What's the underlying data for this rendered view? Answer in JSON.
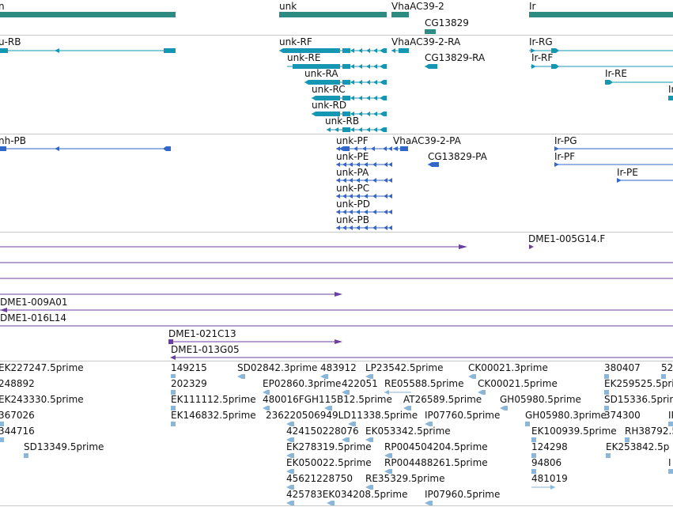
{
  "colors": {
    "gene": "#2e8b82",
    "transcript": "#1597b3",
    "protein": "#3266c8",
    "clone": "#6a3fa0",
    "est": "#8ab6d9",
    "divider": "#c8c8c8"
  },
  "genes": [
    {
      "label": "n"
    },
    {
      "label": "unk"
    },
    {
      "label": "VhaAC39-2"
    },
    {
      "label": "CG13829"
    },
    {
      "label": "Ir"
    }
  ],
  "transcripts": [
    {
      "label": "u-RB"
    },
    {
      "label": "unk-RF"
    },
    {
      "label": "VhaAC39-2-RA"
    },
    {
      "label": "Ir-RG"
    },
    {
      "label": "unk-RE"
    },
    {
      "label": "CG13829-RA"
    },
    {
      "label": "Ir-RF"
    },
    {
      "label": "unk-RA"
    },
    {
      "label": "Ir-RE"
    },
    {
      "label": "Ir"
    },
    {
      "label": "unk-RC"
    },
    {
      "label": "unk-RD"
    },
    {
      "label": "unk-RB"
    }
  ],
  "proteins": [
    {
      "label": "nh-PB"
    },
    {
      "label": "unk-PF"
    },
    {
      "label": "VhaAC39-2-PA"
    },
    {
      "label": "Ir-PG"
    },
    {
      "label": "unk-PE"
    },
    {
      "label": "CG13829-PA"
    },
    {
      "label": "Ir-PF"
    },
    {
      "label": "unk-PA"
    },
    {
      "label": "Ir-PE"
    },
    {
      "label": "unk-PC"
    },
    {
      "label": "unk-PD"
    },
    {
      "label": "unk-PB"
    }
  ],
  "clones": [
    {
      "label": "DME1-005G14.F"
    },
    {
      "label": "DME1-009A01"
    },
    {
      "label": "DME1-016L14"
    },
    {
      "label": "DME1-021C13"
    },
    {
      "label": "DME1-013G05"
    }
  ],
  "ests": [
    {
      "label": "EK227247.5prime"
    },
    {
      "label": "149215"
    },
    {
      "label": "SD02842.3prime"
    },
    {
      "label": "483912"
    },
    {
      "label": "LP23542.5prime"
    },
    {
      "label": "CK00021.3prime"
    },
    {
      "label": "380407"
    },
    {
      "label": "52"
    },
    {
      "label": "248892"
    },
    {
      "label": "202329"
    },
    {
      "label": "EP02860.3prime"
    },
    {
      "label": "422051"
    },
    {
      "label": "RE05588.5prime"
    },
    {
      "label": "CK00021.5prime"
    },
    {
      "label": "EK259525.5prime"
    },
    {
      "label": "EK243330.5prime"
    },
    {
      "label": "EK111112.5prime"
    },
    {
      "label": "480016FGH115B12.5prime"
    },
    {
      "label": "AT26589.5prime"
    },
    {
      "label": "GH05980.5prime"
    },
    {
      "label": "SD15336.5prime"
    },
    {
      "label": "367026"
    },
    {
      "label": "EK146832.5prime"
    },
    {
      "label": "236220506949LD11338.5prime"
    },
    {
      "label": "IP07760.5prime"
    },
    {
      "label": "GH05980.3prime"
    },
    {
      "label": "374300"
    },
    {
      "label": "IP"
    },
    {
      "label": "344716"
    },
    {
      "label": "424150228076"
    },
    {
      "label": "EK053342.5prime"
    },
    {
      "label": "EK100939.5prime"
    },
    {
      "label": "RH38792.5"
    },
    {
      "label": "SD13349.5prime"
    },
    {
      "label": "EK278319.5prime"
    },
    {
      "label": "RP004504204.5prime"
    },
    {
      "label": "124298"
    },
    {
      "label": "EK253842.5p"
    },
    {
      "label": "EK050022.5prime"
    },
    {
      "label": "RP004488261.5prime"
    },
    {
      "label": "94806"
    },
    {
      "label": "I"
    },
    {
      "label": "45621228750"
    },
    {
      "label": "RE35329.5prime"
    },
    {
      "label": "481019"
    },
    {
      "label": "425783EK034208.5prime"
    },
    {
      "label": "IP07960.5prime"
    }
  ]
}
